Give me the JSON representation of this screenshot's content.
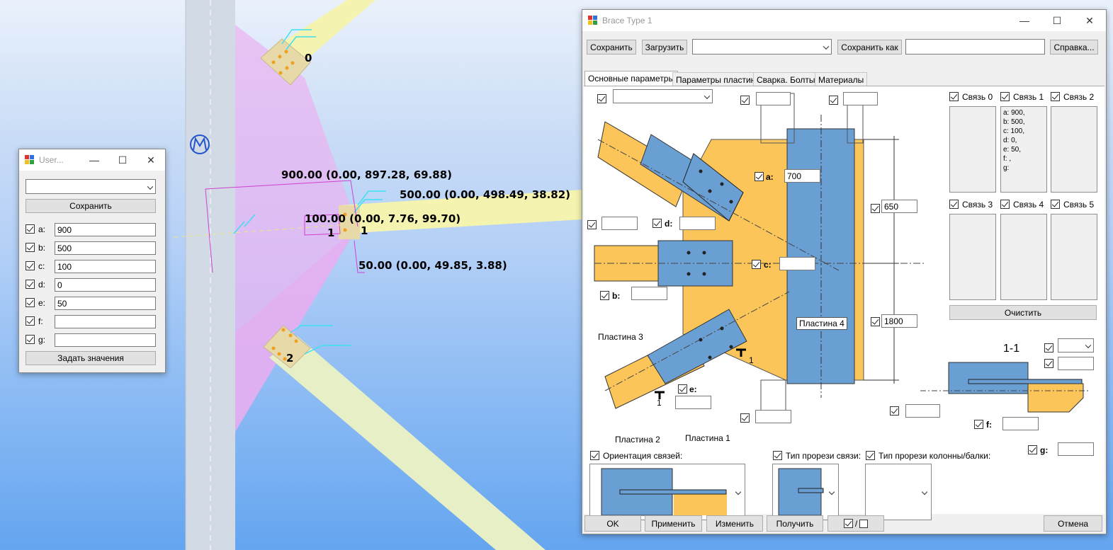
{
  "scene": {
    "dim_labels": [
      "900.00 (0.00, 897.28, 69.88)",
      "500.00 (0.00, 498.49, 38.82)",
      "100.00 (0.00, 7.76, 99.70)",
      "50.00 (0.00, 49.85, 3.88)"
    ],
    "node_labels": [
      "0",
      "1",
      "1",
      "2"
    ]
  },
  "user_dialog": {
    "title": "User...",
    "combo_value": "",
    "save_label": "Сохранить",
    "fields": [
      {
        "label": "a:",
        "value": "900"
      },
      {
        "label": "b:",
        "value": "500"
      },
      {
        "label": "c:",
        "value": "100"
      },
      {
        "label": "d:",
        "value": "0"
      },
      {
        "label": "e:",
        "value": "50"
      },
      {
        "label": "f:",
        "value": ""
      },
      {
        "label": "g:",
        "value": ""
      }
    ],
    "apply_label": "Задать значения"
  },
  "brace": {
    "title": "Brace Type 1",
    "toolbar": {
      "save": "Сохранить",
      "load": "Загрузить",
      "save_as": "Сохранить как",
      "help": "Справка...",
      "preset_value": "",
      "save_as_value": ""
    },
    "tabs": [
      "Основные параметры",
      "Параметры пластин",
      "Сварка. Болты",
      "Материалы"
    ],
    "params": {
      "a_label": "a:",
      "a_value": "700",
      "b_label": "b:",
      "b_value": "",
      "c_label": "c:",
      "c_value": "",
      "d_label": "d:",
      "d_value": "",
      "e_label": "e:",
      "e_value": "",
      "f_label": "f:",
      "f_value": "",
      "g_label": "g:",
      "g_value": "",
      "h_top": "650",
      "h_bottom": "1800",
      "top1": "",
      "top2": "",
      "left1": "",
      "bottom1": "",
      "sec1": "",
      "sec2": "",
      "sec3": ""
    },
    "plates": {
      "p1": "Пластина 1",
      "p2": "Пластина 2",
      "p3": "Пластина 3",
      "p4": "Пластина 4"
    },
    "section_label": "1-1",
    "cut_marks": [
      "1",
      "1"
    ],
    "links": {
      "labels": [
        "Связь 0",
        "Связь 1",
        "Связь 2",
        "Связь 3",
        "Связь 4",
        "Связь 5"
      ],
      "link1_text": "a: 900,\nb: 500,\nc: 100,\nd: 0,\ne: 50,\nf: ,\ng:",
      "clear": "Очистить"
    },
    "options": {
      "orient": "Ориентация связей:",
      "cut_brace": "Тип прорези связи:",
      "cut_col": "Тип прорези колонны/балки:"
    },
    "bottom": {
      "ok": "OK",
      "apply": "Применить",
      "modify": "Изменить",
      "get": "Получить",
      "cancel": "Отмена",
      "toggle": "/"
    }
  },
  "colors": {
    "steel_blue": "#6a9fd4",
    "plate_yellow": "#fbc55a",
    "brace_yellow": "#f4f3b0",
    "magenta": "#e040e0"
  }
}
